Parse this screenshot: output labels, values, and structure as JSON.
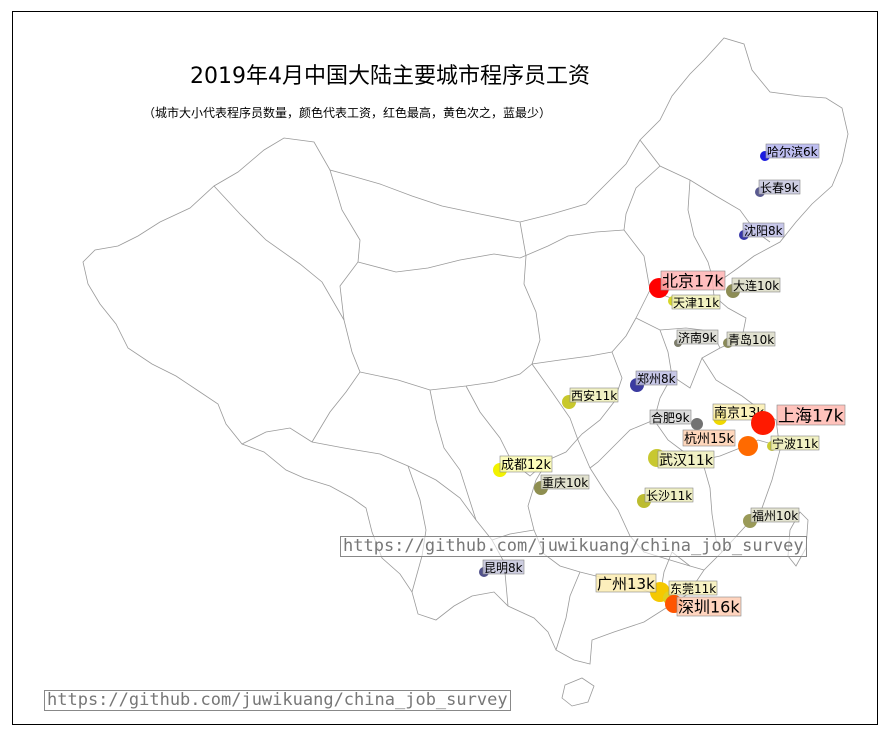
{
  "title": "2019年4月中国大陆主要城市程序员工资",
  "subtitle": "（城市大小代表程序员数量，颜色代表工资，红色最高，黄色次之，蓝最少）",
  "watermark": "https://github.com/juwikuang/china_job_survey",
  "colors": {
    "high": "#ff0000",
    "mid": "#ffff00",
    "low": "#0000cc",
    "border": "#999999"
  },
  "cities": [
    {
      "name": "哈尔滨",
      "salary_k": 6,
      "label": "哈尔滨6k",
      "color": "#1a1adf",
      "bg": "#b3b3ef"
    },
    {
      "name": "长春",
      "salary_k": 9,
      "label": "长春9k",
      "color": "#5a5a90",
      "bg": "#c6c6dd"
    },
    {
      "name": "沈阳",
      "salary_k": 8,
      "label": "沈阳8k",
      "color": "#3535a8",
      "bg": "#bdbde6"
    },
    {
      "name": "北京",
      "salary_k": 17,
      "label": "北京17k",
      "color": "#ff0000",
      "bg": "#ffb3b3"
    },
    {
      "name": "大连",
      "salary_k": 10,
      "label": "大连10k",
      "color": "#8d8d55",
      "bg": "#dcdcc6"
    },
    {
      "name": "天津",
      "salary_k": 11,
      "label": "天津11k",
      "color": "#d6d62a",
      "bg": "#f1f1b8"
    },
    {
      "name": "济南",
      "salary_k": 9,
      "label": "济南9k",
      "color": "#7d7d6a",
      "bg": "#d8d8d0"
    },
    {
      "name": "青岛",
      "salary_k": 10,
      "label": "青岛10k",
      "color": "#8a8a58",
      "bg": "#dcdcc8"
    },
    {
      "name": "郑州",
      "salary_k": 8,
      "label": "郑州8k",
      "color": "#3b3ba0",
      "bg": "#bdbde3"
    },
    {
      "name": "西安",
      "salary_k": 11,
      "label": "西安11k",
      "color": "#c8c82c",
      "bg": "#eeeeb8"
    },
    {
      "name": "南京",
      "salary_k": 13,
      "label": "南京13k",
      "color": "#f0d800",
      "bg": "#fbf0b0"
    },
    {
      "name": "上海",
      "salary_k": 17,
      "label": "上海17k",
      "color": "#ff1a00",
      "bg": "#ffb8b0"
    },
    {
      "name": "合肥",
      "salary_k": 9,
      "label": "合肥9k",
      "color": "#727272",
      "bg": "#d5d5d5"
    },
    {
      "name": "杭州",
      "salary_k": 15,
      "label": "杭州15k",
      "color": "#ff6a00",
      "bg": "#ffd0b0"
    },
    {
      "name": "宁波",
      "salary_k": 11,
      "label": "宁波11k",
      "color": "#cccc30",
      "bg": "#eeeeb8"
    },
    {
      "name": "成都",
      "salary_k": 12,
      "label": "成都12k",
      "color": "#f2f200",
      "bg": "#fbfbb0"
    },
    {
      "name": "武汉",
      "salary_k": 11,
      "label": "武汉11k",
      "color": "#c8c830",
      "bg": "#eeeebb"
    },
    {
      "name": "重庆",
      "salary_k": 10,
      "label": "重庆10k",
      "color": "#8e8e50",
      "bg": "#dcdcc5"
    },
    {
      "name": "长沙",
      "salary_k": 11,
      "label": "长沙11k",
      "color": "#bcbc30",
      "bg": "#ececb9"
    },
    {
      "name": "福州",
      "salary_k": 10,
      "label": "福州10k",
      "color": "#9a9a58",
      "bg": "#dedec8"
    },
    {
      "name": "昆明",
      "salary_k": 8,
      "label": "昆明8k",
      "color": "#50508a",
      "bg": "#c4c4da"
    },
    {
      "name": "广州",
      "salary_k": 13,
      "label": "广州13k",
      "color": "#f5c800",
      "bg": "#fcecb0"
    },
    {
      "name": "东莞",
      "salary_k": 11,
      "label": "东莞11k",
      "color": "#e0d020",
      "bg": "#f6f0b8"
    },
    {
      "name": "深圳",
      "salary_k": 16,
      "label": "深圳16k",
      "color": "#ff5500",
      "bg": "#ffccb3"
    }
  ]
}
